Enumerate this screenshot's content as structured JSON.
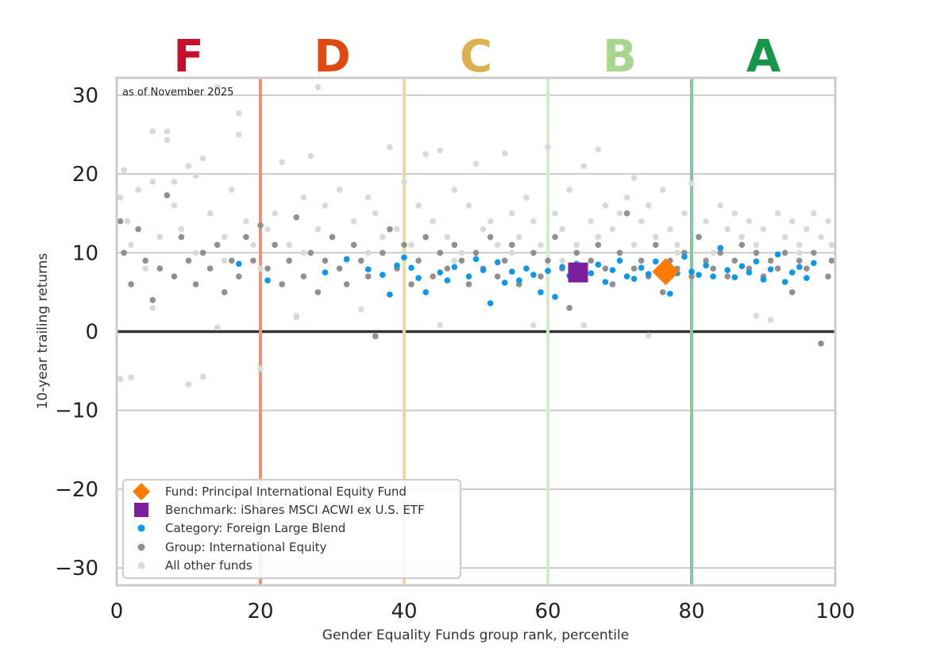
{
  "chart_data": {
    "type": "scatter",
    "annotation": "as of November 2025",
    "xlabel": "Gender Equality Funds group rank, percentile",
    "ylabel": "10-year trailing returns",
    "xlim": [
      0,
      100
    ],
    "ylim": [
      -32.2,
      32.2
    ],
    "xticks": [
      0,
      20,
      40,
      60,
      80,
      100
    ],
    "yticks": [
      30,
      20,
      10,
      0,
      -10,
      -20,
      -30
    ],
    "ytick_labels": [
      "30",
      "20",
      "10",
      "0",
      "−10",
      "−20",
      "−30"
    ],
    "grid": true,
    "legend_position": "bottom-left",
    "grade_bands": [
      {
        "letter": "F",
        "center": 10,
        "color": "#c8102e"
      },
      {
        "letter": "D",
        "center": 30,
        "color": "#e04a12"
      },
      {
        "letter": "C",
        "center": 50,
        "color": "#dcb050"
      },
      {
        "letter": "B",
        "center": 70,
        "color": "#a8d68f"
      },
      {
        "letter": "A",
        "center": 90,
        "color": "#17964a"
      }
    ],
    "band_boundaries": [
      {
        "x": 20,
        "color": "#ee9378"
      },
      {
        "x": 40,
        "color": "#f1d8a0"
      },
      {
        "x": 60,
        "color": "#d3eccb"
      },
      {
        "x": 80,
        "color": "#7fcb9a"
      }
    ],
    "series": [
      {
        "name": "All other funds",
        "color": "#d5dbd5",
        "marker": "circle",
        "points": [
          [
            0.5,
            17
          ],
          [
            1,
            20.5
          ],
          [
            1.5,
            14
          ],
          [
            2,
            11
          ],
          [
            3,
            18
          ],
          [
            4,
            8
          ],
          [
            5,
            25.4
          ],
          [
            5,
            19
          ],
          [
            6,
            12
          ],
          [
            7,
            24.3
          ],
          [
            7,
            25.4
          ],
          [
            8,
            16
          ],
          [
            9,
            13
          ],
          [
            10,
            -6.7
          ],
          [
            10,
            21
          ],
          [
            11,
            10
          ],
          [
            11,
            19.8
          ],
          [
            12,
            -5.7
          ],
          [
            12,
            22
          ],
          [
            13,
            15
          ],
          [
            14,
            31
          ],
          [
            15,
            12
          ],
          [
            16,
            18
          ],
          [
            17,
            27.7
          ],
          [
            17,
            25
          ],
          [
            18,
            14
          ],
          [
            19,
            11
          ],
          [
            20,
            8
          ],
          [
            20,
            -4.7
          ],
          [
            21,
            13
          ],
          [
            22,
            15
          ],
          [
            23,
            21.5
          ],
          [
            24,
            11
          ],
          [
            25,
            2
          ],
          [
            26,
            17
          ],
          [
            27,
            22.3
          ],
          [
            28,
            13
          ],
          [
            28,
            31
          ],
          [
            29,
            16
          ],
          [
            30,
            12
          ],
          [
            31,
            18
          ],
          [
            32,
            9
          ],
          [
            33,
            14
          ],
          [
            34,
            2.8
          ],
          [
            35,
            17
          ],
          [
            36,
            15
          ],
          [
            37,
            12
          ],
          [
            38,
            23.4
          ],
          [
            39,
            13
          ],
          [
            40,
            19
          ],
          [
            41,
            11
          ],
          [
            42,
            16
          ],
          [
            43,
            22.5
          ],
          [
            44,
            14
          ],
          [
            45,
            23
          ],
          [
            46,
            12
          ],
          [
            47,
            18
          ],
          [
            48,
            10
          ],
          [
            49,
            16
          ],
          [
            50,
            21.3
          ],
          [
            51,
            13
          ],
          [
            52,
            14
          ],
          [
            53,
            11
          ],
          [
            54,
            22.6
          ],
          [
            55,
            15
          ],
          [
            56,
            12
          ],
          [
            57,
            17
          ],
          [
            58,
            14
          ],
          [
            59,
            11
          ],
          [
            60,
            23.4
          ],
          [
            61,
            15
          ],
          [
            62,
            13
          ],
          [
            63,
            18
          ],
          [
            64,
            11
          ],
          [
            65,
            21
          ],
          [
            66,
            14
          ],
          [
            67,
            12
          ],
          [
            67,
            23.1
          ],
          [
            68,
            16
          ],
          [
            69,
            13
          ],
          [
            70,
            15
          ],
          [
            71,
            17
          ],
          [
            72,
            11
          ],
          [
            72,
            19.5
          ],
          [
            73,
            14
          ],
          [
            74,
            16
          ],
          [
            75,
            12
          ],
          [
            76,
            18
          ],
          [
            77,
            13
          ],
          [
            78,
            11
          ],
          [
            79,
            15
          ],
          [
            80,
            18.8
          ],
          [
            81,
            12
          ],
          [
            82,
            14
          ],
          [
            83,
            10
          ],
          [
            84,
            16
          ],
          [
            85,
            13
          ],
          [
            86,
            15
          ],
          [
            87,
            12
          ],
          [
            88,
            14
          ],
          [
            89,
            11
          ],
          [
            90,
            13
          ],
          [
            91,
            1.5
          ],
          [
            92,
            15
          ],
          [
            93,
            12
          ],
          [
            94,
            14
          ],
          [
            95,
            11
          ],
          [
            96,
            13
          ],
          [
            97,
            15
          ],
          [
            98,
            12
          ],
          [
            99,
            14
          ],
          [
            99.5,
            11
          ],
          [
            0.5,
            -6
          ],
          [
            2,
            -5.8
          ],
          [
            5,
            3
          ],
          [
            14,
            0.5
          ],
          [
            25,
            1.8
          ],
          [
            45,
            0.8
          ],
          [
            58,
            0.8
          ],
          [
            65,
            0.8
          ],
          [
            74,
            -0.5
          ],
          [
            89,
            2
          ],
          [
            3,
            13
          ],
          [
            8,
            19
          ],
          [
            15,
            9
          ],
          [
            26,
            10
          ],
          [
            35,
            10
          ],
          [
            47,
            9
          ],
          [
            55,
            10
          ],
          [
            62,
            9
          ],
          [
            70,
            10
          ],
          [
            78,
            10
          ],
          [
            86,
            9
          ],
          [
            95,
            10
          ]
        ]
      },
      {
        "name": "Group: International Equity",
        "color": "#8f908f",
        "marker": "circle",
        "points": [
          [
            0.5,
            14
          ],
          [
            1,
            10
          ],
          [
            2,
            6
          ],
          [
            3,
            13
          ],
          [
            4,
            9
          ],
          [
            5,
            4
          ],
          [
            6,
            8
          ],
          [
            7,
            17.3
          ],
          [
            8,
            7
          ],
          [
            9,
            12
          ],
          [
            10,
            9
          ],
          [
            11,
            6
          ],
          [
            12,
            10
          ],
          [
            13,
            8
          ],
          [
            14,
            11
          ],
          [
            15,
            5
          ],
          [
            16,
            9
          ],
          [
            17,
            7
          ],
          [
            18,
            12
          ],
          [
            19,
            9
          ],
          [
            20,
            13.5
          ],
          [
            21,
            8
          ],
          [
            22,
            11
          ],
          [
            23,
            6
          ],
          [
            24,
            9
          ],
          [
            25,
            14.5
          ],
          [
            26,
            7
          ],
          [
            27,
            10
          ],
          [
            28,
            5
          ],
          [
            29,
            9
          ],
          [
            30,
            12
          ],
          [
            31,
            8
          ],
          [
            32,
            6
          ],
          [
            33,
            11
          ],
          [
            34,
            9
          ],
          [
            35,
            7
          ],
          [
            36,
            -0.6
          ],
          [
            37,
            10
          ],
          [
            38,
            13
          ],
          [
            39,
            8
          ],
          [
            40,
            11
          ],
          [
            41,
            6
          ],
          [
            42,
            9
          ],
          [
            43,
            12
          ],
          [
            44,
            7
          ],
          [
            45,
            10
          ],
          [
            46,
            8
          ],
          [
            47,
            11
          ],
          [
            48,
            9
          ],
          [
            49,
            6
          ],
          [
            50,
            10
          ],
          [
            51,
            8
          ],
          [
            52,
            12
          ],
          [
            53,
            7
          ],
          [
            54,
            9
          ],
          [
            55,
            11
          ],
          [
            56,
            6
          ],
          [
            57,
            8
          ],
          [
            58,
            10
          ],
          [
            59,
            7
          ],
          [
            60,
            9
          ],
          [
            61,
            12
          ],
          [
            62,
            8
          ],
          [
            63,
            3
          ],
          [
            64,
            10
          ],
          [
            65,
            7
          ],
          [
            66,
            9
          ],
          [
            67,
            11
          ],
          [
            68,
            8
          ],
          [
            69,
            6
          ],
          [
            70,
            10
          ],
          [
            71,
            15
          ],
          [
            72,
            8
          ],
          [
            73,
            9
          ],
          [
            74,
            7
          ],
          [
            75,
            11
          ],
          [
            76,
            5
          ],
          [
            77,
            9
          ],
          [
            78,
            8
          ],
          [
            79,
            10
          ],
          [
            80,
            7
          ],
          [
            81,
            12
          ],
          [
            82,
            9
          ],
          [
            83,
            8
          ],
          [
            84,
            10
          ],
          [
            85,
            7
          ],
          [
            86,
            9
          ],
          [
            87,
            11
          ],
          [
            88,
            8
          ],
          [
            89,
            10
          ],
          [
            90,
            7
          ],
          [
            91,
            9
          ],
          [
            92,
            8
          ],
          [
            93,
            10
          ],
          [
            94,
            5
          ],
          [
            95,
            9
          ],
          [
            96,
            8
          ],
          [
            97,
            10
          ],
          [
            98,
            -1.5
          ],
          [
            99,
            7
          ],
          [
            99.5,
            9
          ]
        ]
      },
      {
        "name": "Category: Foreign Large Blend",
        "color": "#0a98ea",
        "marker": "circle",
        "points": [
          [
            17,
            8.6
          ],
          [
            21,
            6.5
          ],
          [
            29,
            7.5
          ],
          [
            32,
            9.2
          ],
          [
            35,
            7.9
          ],
          [
            37,
            7.2
          ],
          [
            38,
            4.7
          ],
          [
            39,
            8.4
          ],
          [
            40,
            9.4
          ],
          [
            41,
            8.1
          ],
          [
            42,
            6.8
          ],
          [
            43,
            5
          ],
          [
            45,
            7.5
          ],
          [
            46,
            6.5
          ],
          [
            47,
            8.2
          ],
          [
            49,
            7
          ],
          [
            50,
            9.2
          ],
          [
            51,
            7.8
          ],
          [
            52,
            3.6
          ],
          [
            53,
            8.8
          ],
          [
            54,
            6.2
          ],
          [
            55,
            7.6
          ],
          [
            56,
            6.5
          ],
          [
            57,
            8
          ],
          [
            58,
            7.2
          ],
          [
            59,
            5
          ],
          [
            60,
            7.7
          ],
          [
            61,
            4.4
          ],
          [
            62,
            8.2
          ],
          [
            63,
            7.1
          ],
          [
            64,
            8.6
          ],
          [
            65,
            6.8
          ],
          [
            66,
            7.4
          ],
          [
            67,
            8.5
          ],
          [
            68,
            6.3
          ],
          [
            69,
            7.8
          ],
          [
            70,
            9
          ],
          [
            71,
            7
          ],
          [
            72,
            6.7
          ],
          [
            73,
            8.1
          ],
          [
            74,
            7.3
          ],
          [
            75,
            8.9
          ],
          [
            76,
            6.9
          ],
          [
            77,
            4.8
          ],
          [
            78,
            7.4
          ],
          [
            79,
            9.5
          ],
          [
            80,
            7.6
          ],
          [
            81,
            7.2
          ],
          [
            82,
            8.4
          ],
          [
            83,
            7
          ],
          [
            84,
            10.6
          ],
          [
            85,
            7.8
          ],
          [
            86,
            6.9
          ],
          [
            87,
            8.3
          ],
          [
            88,
            7.5
          ],
          [
            89,
            8.9
          ],
          [
            90,
            6.6
          ],
          [
            91,
            7.9
          ],
          [
            92,
            9.8
          ],
          [
            93,
            6.3
          ],
          [
            94,
            7.5
          ],
          [
            95,
            8.2
          ],
          [
            96,
            6.8
          ],
          [
            97,
            8.7
          ]
        ]
      },
      {
        "name": "Fund: Principal International Equity Fund",
        "color": "#ff7a00",
        "marker": "diamond",
        "points": [
          [
            76.4,
            7.6
          ]
        ]
      },
      {
        "name": "Benchmark: iShares MSCI ACWI ex U.S. ETF",
        "color": "#7b1f9e",
        "marker": "square",
        "points": [
          [
            64.2,
            7.5
          ]
        ]
      }
    ],
    "legend": [
      {
        "label": "Fund: Principal International Equity Fund",
        "marker": "diamond",
        "color": "#ff7a00"
      },
      {
        "label": "Benchmark: iShares MSCI ACWI ex U.S. ETF",
        "marker": "square",
        "color": "#7b1f9e"
      },
      {
        "label": "Category: Foreign Large Blend",
        "marker": "circle",
        "color": "#0a98ea"
      },
      {
        "label": "Group: International Equity",
        "marker": "circle",
        "color": "#8f908f"
      },
      {
        "label": "All other funds",
        "marker": "circle",
        "color": "#d5dbd5"
      }
    ]
  }
}
